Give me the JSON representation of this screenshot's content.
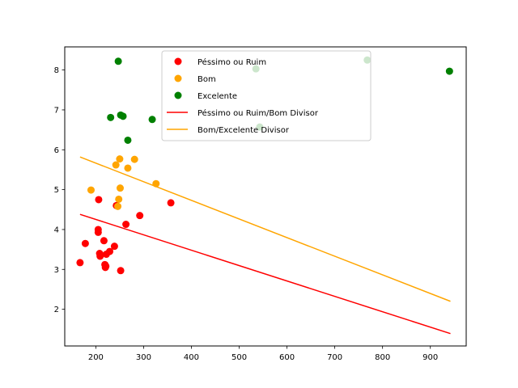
{
  "chart_data": {
    "type": "scatter",
    "title": "",
    "xlabel": "",
    "ylabel": "",
    "xlim": [
      135,
      975
    ],
    "ylim": [
      1.08,
      8.58
    ],
    "xticks": [
      200,
      300,
      400,
      500,
      600,
      700,
      800,
      900
    ],
    "yticks": [
      2,
      3,
      4,
      5,
      6,
      7,
      8
    ],
    "grid": false,
    "legend_position": "top-center",
    "series": [
      {
        "name": "Péssimo ou Ruim",
        "kind": "points",
        "color": "#ff0000",
        "points": [
          [
            167,
            3.17
          ],
          [
            178,
            3.65
          ],
          [
            205,
            4.0
          ],
          [
            205,
            3.93
          ],
          [
            206,
            4.75
          ],
          [
            208,
            3.4
          ],
          [
            209,
            3.33
          ],
          [
            217,
            3.72
          ],
          [
            219,
            3.12
          ],
          [
            220,
            3.05
          ],
          [
            221,
            3.08
          ],
          [
            222,
            3.38
          ],
          [
            229,
            3.45
          ],
          [
            239,
            3.58
          ],
          [
            243,
            4.6
          ],
          [
            252,
            2.97
          ],
          [
            263,
            4.13
          ],
          [
            292,
            4.35
          ],
          [
            357,
            4.67
          ]
        ]
      },
      {
        "name": "Bom",
        "kind": "points",
        "color": "#ffa500",
        "points": [
          [
            190,
            4.99
          ],
          [
            242,
            5.62
          ],
          [
            246,
            4.58
          ],
          [
            248,
            4.76
          ],
          [
            250,
            5.77
          ],
          [
            251,
            5.04
          ],
          [
            267,
            5.54
          ],
          [
            281,
            5.76
          ],
          [
            326,
            5.15
          ]
        ]
      },
      {
        "name": "Excelente",
        "kind": "points",
        "color": "#008000",
        "points": [
          [
            231,
            6.81
          ],
          [
            247,
            8.22
          ],
          [
            252,
            6.87
          ],
          [
            257,
            6.84
          ],
          [
            267,
            6.24
          ],
          [
            318,
            6.76
          ],
          [
            535,
            8.03
          ],
          [
            543,
            6.57
          ],
          [
            768,
            8.25
          ],
          [
            940,
            7.97
          ]
        ]
      },
      {
        "name": "Péssimo ou Ruim/Bom Divisor",
        "kind": "line",
        "color": "#ff0000",
        "points": [
          [
            167,
            4.38
          ],
          [
            942,
            1.39
          ]
        ]
      },
      {
        "name": "Bom/Excelente Divisor",
        "kind": "line",
        "color": "#ffa500",
        "points": [
          [
            167,
            5.82
          ],
          [
            942,
            2.2
          ]
        ]
      }
    ]
  }
}
